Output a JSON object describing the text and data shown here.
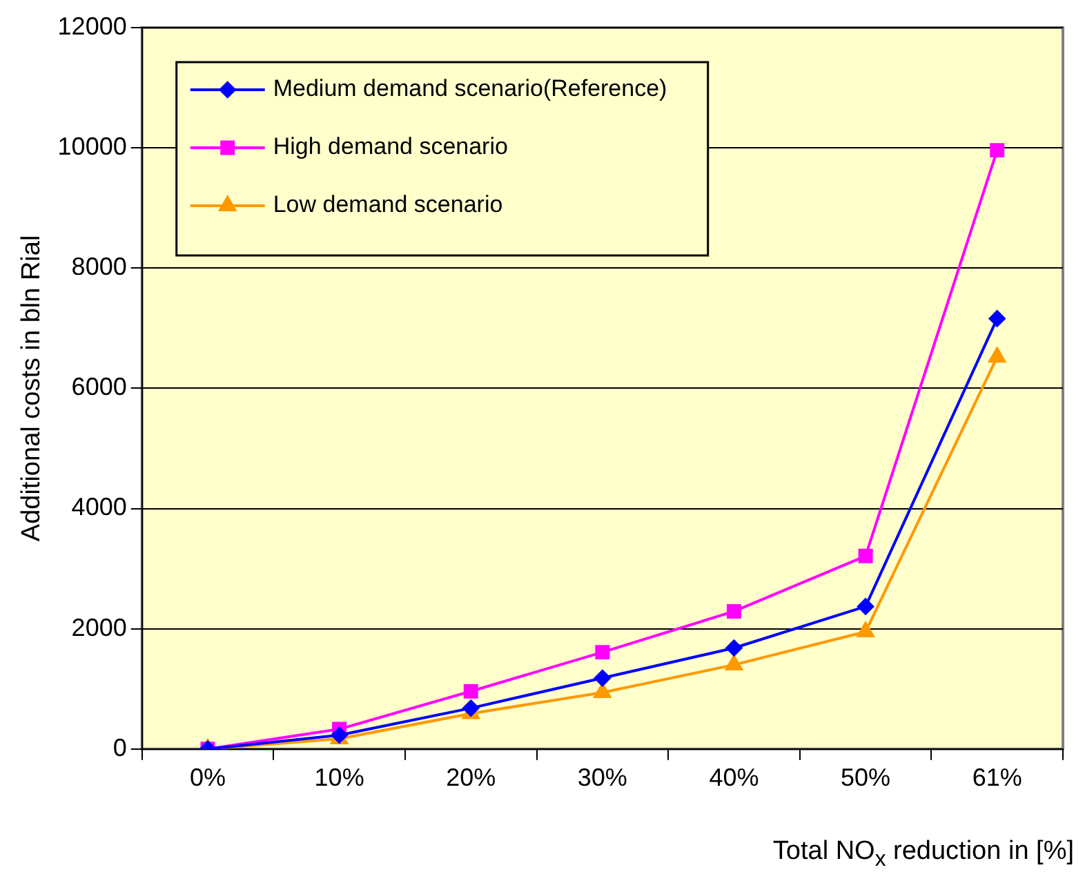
{
  "chart_data": {
    "type": "line",
    "xlabel": "Total NO$_{x}$ reduction in [%]",
    "ylabel": "Additional costs in bln Rial",
    "categories": [
      "0%",
      "10%",
      "20%",
      "30%",
      "40%",
      "50%",
      "61%"
    ],
    "series": [
      {
        "name": "Medium demand scenario(Reference)",
        "color": "#0000ff",
        "marker": "diamond",
        "values": [
          0,
          230,
          680,
          1180,
          1680,
          2370,
          7160
        ]
      },
      {
        "name": "High demand scenario",
        "color": "#ff00ff",
        "marker": "square",
        "values": [
          0,
          330,
          960,
          1610,
          2290,
          3210,
          9960
        ]
      },
      {
        "name": "Low demand scenario",
        "color": "#ff9900",
        "marker": "triangle",
        "values": [
          0,
          170,
          590,
          940,
          1400,
          1950,
          6520
        ]
      }
    ],
    "ylim": [
      0,
      12000
    ],
    "yticks": [
      0,
      2000,
      4000,
      6000,
      8000,
      10000,
      12000
    ],
    "grid": "y",
    "legend": "top left",
    "line_style": "solid"
  }
}
